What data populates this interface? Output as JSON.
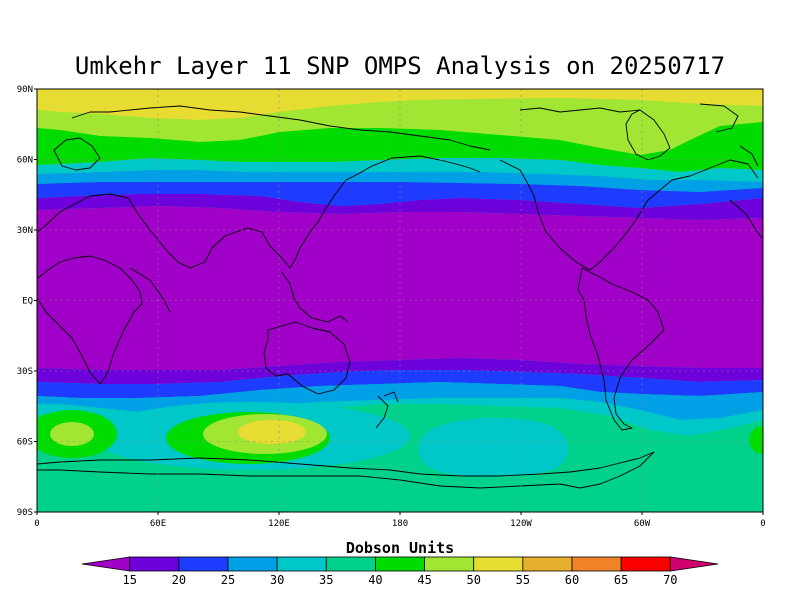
{
  "title": "Umkehr Layer 11 SNP OMPS Analysis on 20250717",
  "colorbar": {
    "title": "Dobson Units",
    "levels": [
      "15",
      "20",
      "25",
      "30",
      "35",
      "40",
      "45",
      "50",
      "55",
      "60",
      "65",
      "70"
    ],
    "colors": [
      "#a000c8",
      "#6e00dc",
      "#1e3cff",
      "#00a0e6",
      "#00c8c8",
      "#00d28c",
      "#00dc00",
      "#a0e632",
      "#e6dc32",
      "#e6af2d",
      "#f08228",
      "#fa0000",
      "#d2006e"
    ]
  },
  "map": {
    "lat_labels": [
      "90N",
      "60N",
      "30N",
      "EQ",
      "30S",
      "60S",
      "90S"
    ],
    "lon_labels": [
      "0",
      "60E",
      "120E",
      "180",
      "120W",
      "60W",
      "0"
    ]
  },
  "chart_data": {
    "type": "heatmap",
    "title": "Umkehr Layer 11 SNP OMPS Analysis on 20250717",
    "units": "Dobson Units",
    "x_range_lon": [
      0,
      360
    ],
    "y_range_lat": [
      -90,
      90
    ],
    "zonal_bands": [
      {
        "lat": "90N-80N",
        "value_range": [
          50,
          55
        ]
      },
      {
        "lat": "80N-65N",
        "value_range": [
          45,
          50
        ]
      },
      {
        "lat": "65N-55N",
        "value_range": [
          40,
          45
        ]
      },
      {
        "lat": "55N-45N",
        "value_range": [
          30,
          40
        ]
      },
      {
        "lat": "45N-35N",
        "value_range": [
          20,
          25
        ]
      },
      {
        "lat": "35N-30S",
        "value_range": [
          15,
          20
        ]
      },
      {
        "lat": "30S-40S",
        "value_range": [
          20,
          30
        ]
      },
      {
        "lat": "40S-50S",
        "value_range": [
          30,
          40
        ]
      },
      {
        "lat": "50S-90S",
        "value_range": [
          35,
          40
        ]
      }
    ],
    "local_maxima": [
      {
        "lon": 125,
        "lat": -57,
        "value_range": [
          50,
          55
        ]
      },
      {
        "lon": 17,
        "lat": -57,
        "value_range": [
          45,
          50
        ]
      }
    ],
    "grid": true
  }
}
